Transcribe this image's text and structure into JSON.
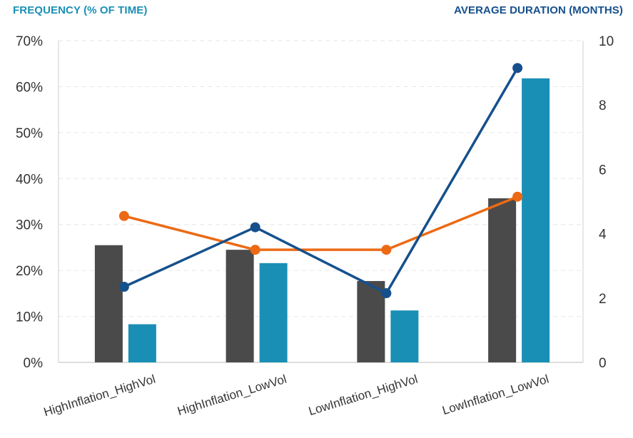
{
  "chart_data": {
    "type": "bar",
    "left_axis_title": "FREQUENCY (% OF TIME)",
    "right_axis_title": "AVERAGE DURATION (MONTHS)",
    "categories": [
      "HighInflation_HighVol",
      "HighInflation_LowVol",
      "LowInflation_HighVol",
      "LowInflation_LowVol"
    ],
    "left_axis": {
      "ylim": [
        0,
        70
      ],
      "ticks": [
        0,
        10,
        20,
        30,
        40,
        50,
        60,
        70
      ],
      "tick_labels": [
        "0%",
        "10%",
        "20%",
        "30%",
        "40%",
        "50%",
        "60%",
        "70%"
      ]
    },
    "right_axis": {
      "ylim": [
        0,
        10
      ],
      "ticks": [
        0,
        2,
        4,
        6,
        8,
        10
      ],
      "tick_labels": [
        "0",
        "2",
        "4",
        "6",
        "8",
        "10"
      ]
    },
    "grid": true,
    "bar_series": [
      {
        "axis": "left",
        "color": "#4a4a4a",
        "values": [
          25.5,
          24.5,
          17.7,
          35.7
        ]
      },
      {
        "axis": "left",
        "color": "#1a8fb5",
        "values": [
          8.3,
          21.6,
          11.3,
          61.8
        ]
      }
    ],
    "line_series": [
      {
        "axis": "right",
        "color": "#ec6a14",
        "values": [
          4.55,
          3.5,
          3.5,
          5.15
        ]
      },
      {
        "axis": "right",
        "color": "#15508c",
        "values": [
          2.35,
          4.2,
          2.15,
          9.15
        ]
      }
    ]
  }
}
